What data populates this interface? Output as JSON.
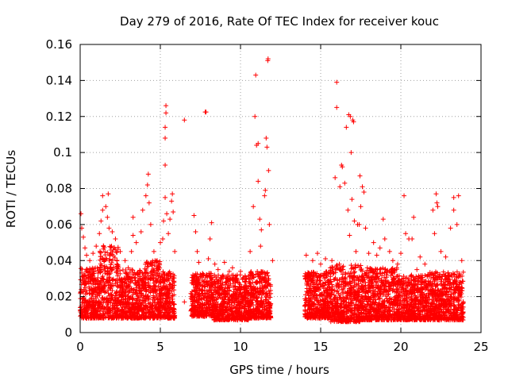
{
  "chart_data": {
    "type": "scatter",
    "title": "Day 279 of 2016, Rate Of TEC Index for receiver kouc",
    "xlabel": "GPS time / hours",
    "ylabel": "ROTI / TECUs",
    "xlim": [
      0,
      25
    ],
    "ylim": [
      0,
      0.16
    ],
    "x_ticks": [
      0,
      5,
      10,
      15,
      20,
      25
    ],
    "x_tick_labels": [
      "0",
      "5",
      "10",
      "15",
      "20",
      "25"
    ],
    "y_ticks": [
      0,
      0.02,
      0.04,
      0.06,
      0.08,
      0.1,
      0.12,
      0.14,
      0.16
    ],
    "y_tick_labels": [
      "0",
      "0.02",
      "0.04",
      "0.06",
      "0.08",
      "0.1",
      "0.12",
      "0.14",
      "0.16"
    ],
    "grid": true,
    "marker": "+",
    "series": [
      {
        "name": "ROTI",
        "color": "#ff0000",
        "points": [
          [
            0.05,
            0.066
          ],
          [
            0.1,
            0.058
          ],
          [
            0.2,
            0.053
          ],
          [
            0.3,
            0.047
          ],
          [
            0.4,
            0.043
          ],
          [
            0.6,
            0.04
          ],
          [
            0.8,
            0.044
          ],
          [
            1.0,
            0.048
          ],
          [
            1.2,
            0.055
          ],
          [
            1.3,
            0.062
          ],
          [
            1.4,
            0.068
          ],
          [
            1.4,
            0.076
          ],
          [
            1.6,
            0.07
          ],
          [
            1.7,
            0.064
          ],
          [
            1.75,
            0.077
          ],
          [
            1.8,
            0.058
          ],
          [
            2.0,
            0.056
          ],
          [
            2.2,
            0.052
          ],
          [
            2.5,
            0.045
          ],
          [
            2.8,
            0.04
          ],
          [
            3.0,
            0.036
          ],
          [
            3.2,
            0.045
          ],
          [
            3.3,
            0.054
          ],
          [
            3.3,
            0.064
          ],
          [
            3.5,
            0.05
          ],
          [
            3.8,
            0.056
          ],
          [
            3.9,
            0.068
          ],
          [
            4.1,
            0.076
          ],
          [
            4.2,
            0.082
          ],
          [
            4.25,
            0.088
          ],
          [
            4.3,
            0.072
          ],
          [
            4.4,
            0.06
          ],
          [
            4.6,
            0.045
          ],
          [
            4.8,
            0.04
          ],
          [
            5.0,
            0.05
          ],
          [
            5.15,
            0.052
          ],
          [
            5.2,
            0.062
          ],
          [
            5.3,
            0.075
          ],
          [
            5.3,
            0.093
          ],
          [
            5.3,
            0.108
          ],
          [
            5.3,
            0.114
          ],
          [
            5.35,
            0.122
          ],
          [
            5.35,
            0.126
          ],
          [
            5.4,
            0.066
          ],
          [
            5.5,
            0.055
          ],
          [
            5.6,
            0.063
          ],
          [
            5.7,
            0.073
          ],
          [
            5.75,
            0.077
          ],
          [
            5.8,
            0.067
          ],
          [
            5.9,
            0.045
          ],
          [
            6.5,
            0.118
          ],
          [
            6.5,
            0.017
          ],
          [
            7.1,
            0.065
          ],
          [
            7.2,
            0.056
          ],
          [
            7.3,
            0.045
          ],
          [
            7.4,
            0.039
          ],
          [
            7.5,
            0.031
          ],
          [
            7.8,
            0.1225
          ],
          [
            7.85,
            0.1225
          ],
          [
            8.0,
            0.041
          ],
          [
            8.1,
            0.052
          ],
          [
            8.2,
            0.061
          ],
          [
            8.4,
            0.038
          ],
          [
            8.6,
            0.035
          ],
          [
            8.8,
            0.03
          ],
          [
            9.0,
            0.039
          ],
          [
            9.3,
            0.034
          ],
          [
            9.5,
            0.036
          ],
          [
            9.8,
            0.032
          ],
          [
            10.0,
            0.034
          ],
          [
            10.3,
            0.031
          ],
          [
            10.6,
            0.045
          ],
          [
            10.8,
            0.07
          ],
          [
            10.9,
            0.12
          ],
          [
            10.95,
            0.143
          ],
          [
            11.0,
            0.104
          ],
          [
            11.1,
            0.105
          ],
          [
            11.1,
            0.084
          ],
          [
            11.2,
            0.063
          ],
          [
            11.25,
            0.048
          ],
          [
            11.3,
            0.057
          ],
          [
            11.5,
            0.076
          ],
          [
            11.55,
            0.079
          ],
          [
            11.6,
            0.108
          ],
          [
            11.65,
            0.103
          ],
          [
            11.7,
            0.151
          ],
          [
            11.72,
            0.152
          ],
          [
            11.75,
            0.09
          ],
          [
            11.8,
            0.06
          ],
          [
            12.0,
            0.04
          ],
          [
            14.1,
            0.043
          ],
          [
            14.5,
            0.04
          ],
          [
            14.8,
            0.044
          ],
          [
            15.0,
            0.038
          ],
          [
            15.3,
            0.041
          ],
          [
            15.6,
            0.036
          ],
          [
            15.7,
            0.04
          ],
          [
            15.9,
            0.086
          ],
          [
            16.0,
            0.139
          ],
          [
            16.0,
            0.125
          ],
          [
            16.2,
            0.081
          ],
          [
            16.3,
            0.093
          ],
          [
            16.35,
            0.092
          ],
          [
            16.5,
            0.083
          ],
          [
            16.6,
            0.114
          ],
          [
            16.7,
            0.068
          ],
          [
            16.75,
            0.121
          ],
          [
            16.8,
            0.054
          ],
          [
            16.85,
            0.12
          ],
          [
            16.9,
            0.1
          ],
          [
            16.95,
            0.074
          ],
          [
            17.0,
            0.118
          ],
          [
            17.05,
            0.117
          ],
          [
            17.1,
            0.062
          ],
          [
            17.2,
            0.045
          ],
          [
            17.3,
            0.06
          ],
          [
            17.4,
            0.06
          ],
          [
            17.45,
            0.087
          ],
          [
            17.5,
            0.07
          ],
          [
            17.6,
            0.081
          ],
          [
            17.7,
            0.078
          ],
          [
            17.8,
            0.058
          ],
          [
            18.0,
            0.044
          ],
          [
            18.3,
            0.05
          ],
          [
            18.5,
            0.043
          ],
          [
            18.7,
            0.047
          ],
          [
            18.9,
            0.063
          ],
          [
            19.0,
            0.052
          ],
          [
            19.3,
            0.045
          ],
          [
            19.5,
            0.04
          ],
          [
            19.8,
            0.038
          ],
          [
            20.0,
            0.044
          ],
          [
            20.2,
            0.076
          ],
          [
            20.3,
            0.055
          ],
          [
            20.5,
            0.052
          ],
          [
            20.7,
            0.052
          ],
          [
            20.8,
            0.064
          ],
          [
            21.0,
            0.035
          ],
          [
            21.2,
            0.042
          ],
          [
            21.5,
            0.038
          ],
          [
            22.0,
            0.068
          ],
          [
            22.1,
            0.055
          ],
          [
            22.2,
            0.077
          ],
          [
            22.25,
            0.072
          ],
          [
            22.3,
            0.07
          ],
          [
            22.5,
            0.045
          ],
          [
            22.8,
            0.042
          ],
          [
            23.1,
            0.058
          ],
          [
            23.3,
            0.075
          ],
          [
            23.3,
            0.068
          ],
          [
            23.5,
            0.06
          ],
          [
            23.6,
            0.076
          ],
          [
            23.8,
            0.04
          ]
        ]
      }
    ],
    "dense_bands": [
      {
        "x_range": [
          0.0,
          1.2
        ],
        "y_range": [
          0.008,
          0.036
        ]
      },
      {
        "x_range": [
          1.2,
          2.4
        ],
        "y_range": [
          0.008,
          0.05
        ]
      },
      {
        "x_range": [
          2.4,
          4.0
        ],
        "y_range": [
          0.008,
          0.035
        ]
      },
      {
        "x_range": [
          4.0,
          5.0
        ],
        "y_range": [
          0.008,
          0.04
        ]
      },
      {
        "x_range": [
          5.0,
          5.9
        ],
        "y_range": [
          0.008,
          0.034
        ]
      },
      {
        "x_range": [
          6.9,
          8.3
        ],
        "y_range": [
          0.009,
          0.033
        ]
      },
      {
        "x_range": [
          8.3,
          10.6
        ],
        "y_range": [
          0.007,
          0.032
        ]
      },
      {
        "x_range": [
          10.6,
          11.9
        ],
        "y_range": [
          0.008,
          0.034
        ]
      },
      {
        "x_range": [
          14.0,
          15.6
        ],
        "y_range": [
          0.008,
          0.034
        ]
      },
      {
        "x_range": [
          15.6,
          17.5
        ],
        "y_range": [
          0.006,
          0.038
        ]
      },
      {
        "x_range": [
          17.5,
          19.8
        ],
        "y_range": [
          0.007,
          0.036
        ]
      },
      {
        "x_range": [
          19.8,
          21.6
        ],
        "y_range": [
          0.007,
          0.032
        ]
      },
      {
        "x_range": [
          21.6,
          23.9
        ],
        "y_range": [
          0.007,
          0.034
        ]
      }
    ]
  }
}
